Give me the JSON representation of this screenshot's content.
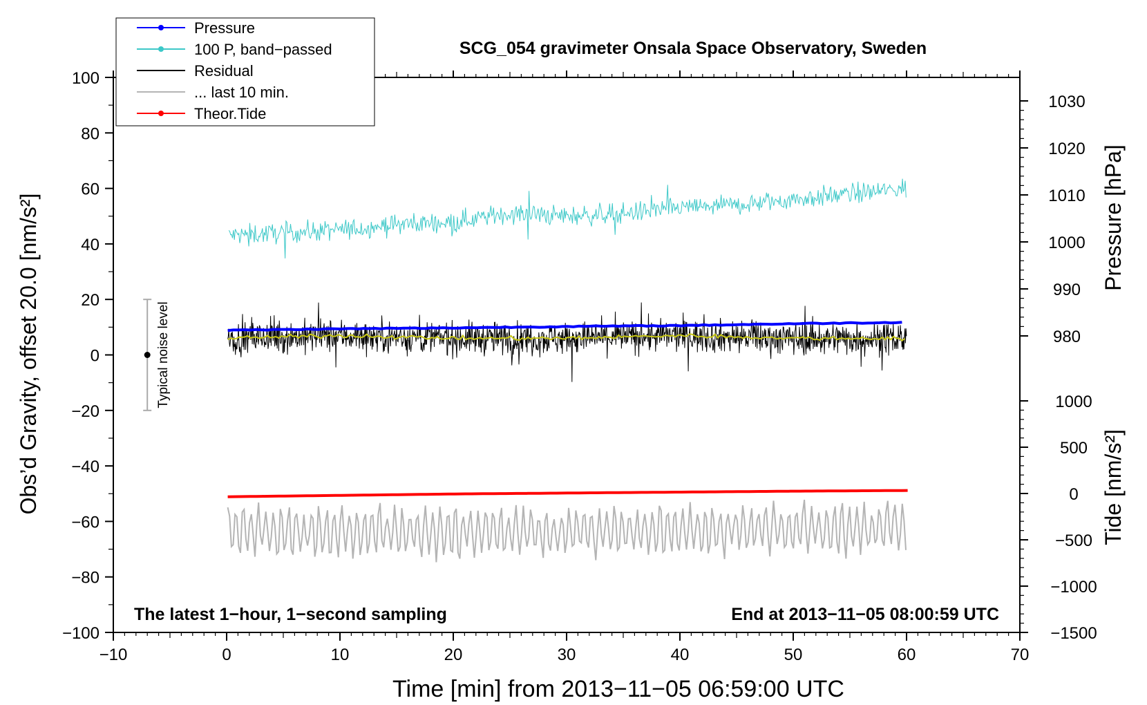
{
  "chart_data": {
    "type": "line",
    "title": "SCG_054 gravimeter Onsala Space Observatory, Sweden",
    "xlabel": "Time [min] from 2013−11−05 06:59:00 UTC",
    "ylabel": "Obs’d Gravity, offset 20.0 [nm/s²]",
    "ylabel_right_top": "Pressure [hPa]",
    "ylabel_right_bottom": "Tide [nm/s²]",
    "xlim": [
      -10,
      70
    ],
    "ylim": [
      -100,
      100
    ],
    "pressure_axis_range": [
      975,
      1035
    ],
    "tide_axis_range": [
      -1500,
      1000
    ],
    "grid": false,
    "legend_position": "top-left",
    "x_ticks": [
      {
        "value": -10,
        "label": "−10"
      },
      {
        "value": 0,
        "label": "0"
      },
      {
        "value": 10,
        "label": "10"
      },
      {
        "value": 20,
        "label": "20"
      },
      {
        "value": 30,
        "label": "30"
      },
      {
        "value": 40,
        "label": "40"
      },
      {
        "value": 50,
        "label": "50"
      },
      {
        "value": 60,
        "label": "60"
      },
      {
        "value": 70,
        "label": "70"
      }
    ],
    "y_ticks": [
      {
        "value": 100,
        "label": "100"
      },
      {
        "value": 80,
        "label": "80"
      },
      {
        "value": 60,
        "label": "60"
      },
      {
        "value": 40,
        "label": "40"
      },
      {
        "value": 20,
        "label": "20"
      },
      {
        "value": 0,
        "label": "0"
      },
      {
        "value": -20,
        "label": "−20"
      },
      {
        "value": -40,
        "label": "−40"
      },
      {
        "value": -60,
        "label": "−60"
      },
      {
        "value": -80,
        "label": "−80"
      },
      {
        "value": -100,
        "label": "−100"
      }
    ],
    "pressure_ticks": [
      {
        "value": 1030,
        "label": "1030"
      },
      {
        "value": 1020,
        "label": "1020"
      },
      {
        "value": 1010,
        "label": "1010"
      },
      {
        "value": 1000,
        "label": "1000"
      },
      {
        "value": 990,
        "label": "990"
      },
      {
        "value": 980,
        "label": "980"
      }
    ],
    "tide_ticks": [
      {
        "value": 1000,
        "label": "1000"
      },
      {
        "value": 500,
        "label": "500"
      },
      {
        "value": 0,
        "label": "0"
      },
      {
        "value": -500,
        "label": "−500"
      },
      {
        "value": -1000,
        "label": "−1000"
      },
      {
        "value": -1500,
        "label": "−1500"
      }
    ],
    "series": [
      {
        "name": "Pressure",
        "color": "#0000ff",
        "marker": true,
        "axis": "pressure",
        "x": [
          0,
          10,
          20,
          30,
          40,
          50,
          60
        ],
        "values": [
          981.2,
          981.5,
          981.7,
          982.0,
          982.2,
          982.6,
          982.9
        ]
      },
      {
        "name": "100 P, band−passed",
        "color": "#3cc8c8",
        "marker": true,
        "axis": "gravity",
        "x": [
          0,
          5,
          10,
          15,
          20,
          25,
          30,
          35,
          40,
          45,
          50,
          55,
          60
        ],
        "values": [
          43,
          44,
          45,
          47,
          48,
          51,
          50,
          51,
          53,
          54,
          56,
          58,
          60
        ]
      },
      {
        "name": "Residual",
        "color": "#000000",
        "marker": false,
        "axis": "gravity",
        "x": [
          0,
          10,
          20,
          30,
          40,
          50,
          60
        ],
        "values": [
          6,
          7,
          6,
          6,
          7,
          6,
          6
        ]
      },
      {
        "name": "... last 10 min.",
        "color": "#b4b4b4",
        "marker": false,
        "axis": "gravity",
        "x": [
          0,
          10,
          20,
          30,
          40,
          50,
          60
        ],
        "values": [
          -63,
          -64,
          -64,
          -64,
          -63,
          -63,
          -63
        ]
      },
      {
        "name": "Theor.Tide",
        "color": "#ff0000",
        "marker": true,
        "axis": "tide",
        "x": [
          0,
          10,
          20,
          30,
          40,
          50,
          60.5
        ],
        "values": [
          -35,
          -20,
          -5,
          5,
          15,
          25,
          33
        ]
      }
    ],
    "noise_bar": {
      "label": "Typical noise level",
      "x": -7,
      "center": 0,
      "low": -20,
      "high": 20
    },
    "annotation_left": "The latest 1−hour, 1−second sampling",
    "annotation_right": "End at 2013−11−05 08:00:59 UTC"
  }
}
